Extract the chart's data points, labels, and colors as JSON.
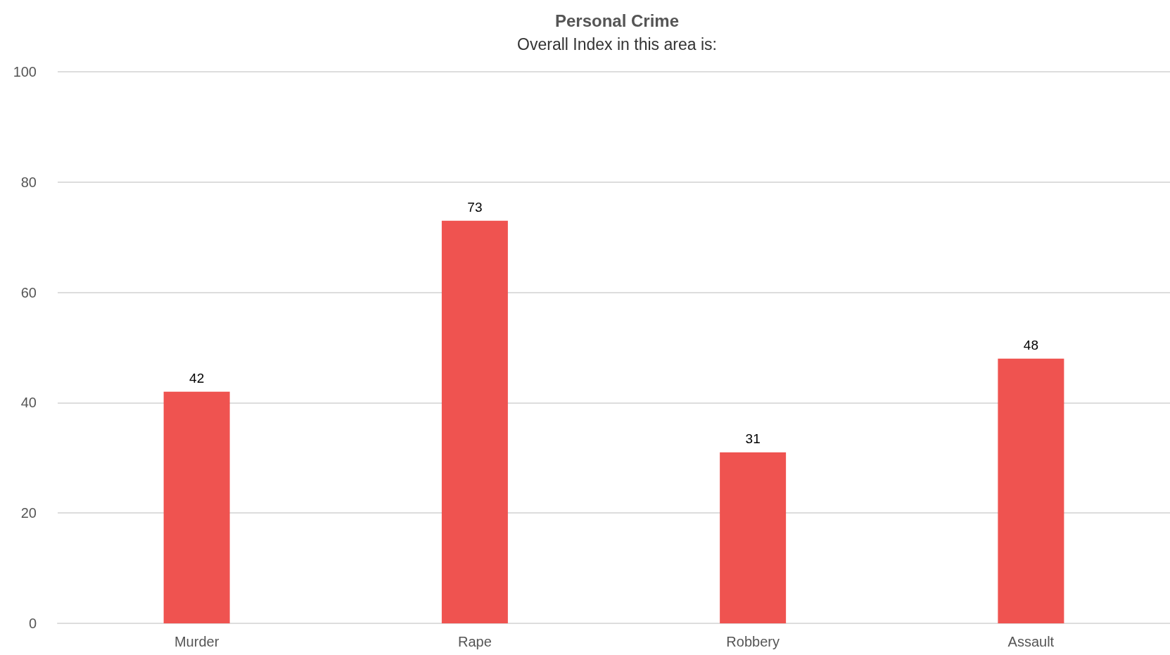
{
  "chart_data": {
    "type": "bar",
    "title": "Personal Crime",
    "subtitle": "Overall Index in this area is:",
    "categories": [
      "Murder",
      "Rape",
      "Robbery",
      "Assault"
    ],
    "values": [
      42,
      73,
      31,
      48
    ],
    "color": "#ef5350",
    "ylim": [
      0,
      100
    ],
    "yticks": [
      0,
      20,
      40,
      60,
      80,
      100
    ],
    "grid": "y",
    "data_labels": true
  }
}
